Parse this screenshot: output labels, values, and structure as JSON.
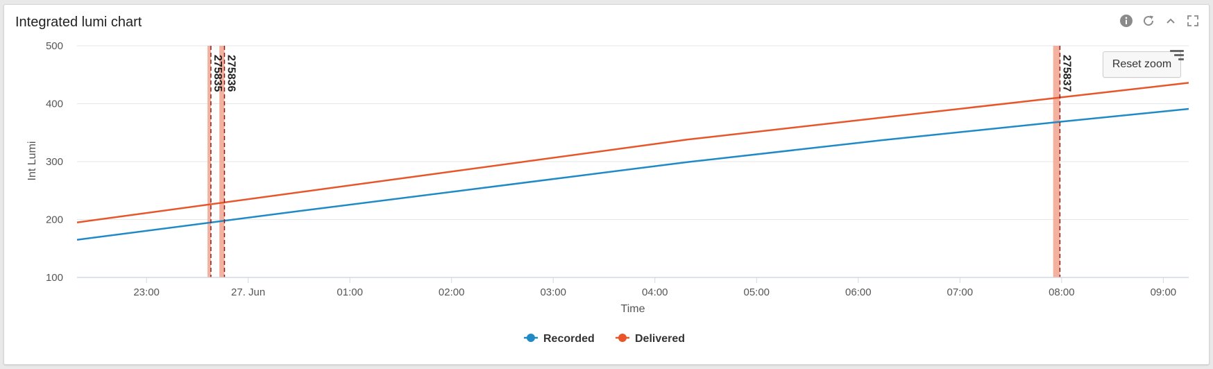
{
  "panel": {
    "title": "Integrated lumi chart",
    "tools": [
      "info-icon",
      "refresh-icon",
      "collapse-icon",
      "fullscreen-icon"
    ]
  },
  "reset_zoom_label": "Reset zoom",
  "colors": {
    "recorded": "#1f8ac5",
    "delivered": "#e8552a",
    "band": "#f0a58e",
    "plotline": "#8b1a1a",
    "grid": "#e6e6e6",
    "axis": "#cfd8e3"
  },
  "chart_data": {
    "type": "line",
    "title": "",
    "xlabel": "Time",
    "ylabel": "Int Lumi",
    "x_type": "datetime",
    "xlim": [
      "26 Jun 22:19",
      "27 Jun 09:15"
    ],
    "ylim": [
      100,
      500
    ],
    "y_ticks": [
      100,
      200,
      300,
      400,
      500
    ],
    "x_ticks": [
      {
        "t": "26 Jun 23:00",
        "label": "23:00"
      },
      {
        "t": "27 Jun 00:00",
        "label": "27. Jun"
      },
      {
        "t": "27 Jun 01:00",
        "label": "01:00"
      },
      {
        "t": "27 Jun 02:00",
        "label": "02:00"
      },
      {
        "t": "27 Jun 03:00",
        "label": "03:00"
      },
      {
        "t": "27 Jun 04:00",
        "label": "04:00"
      },
      {
        "t": "27 Jun 05:00",
        "label": "05:00"
      },
      {
        "t": "27 Jun 06:00",
        "label": "06:00"
      },
      {
        "t": "27 Jun 07:00",
        "label": "07:00"
      },
      {
        "t": "27 Jun 08:00",
        "label": "08:00"
      },
      {
        "t": "27 Jun 09:00",
        "label": "09:00"
      }
    ],
    "grid": true,
    "legend_position": "bottom-center",
    "series": [
      {
        "name": "Recorded",
        "points": [
          {
            "t": "26 Jun 22:19",
            "y": 165
          },
          {
            "t": "27 Jun 00:31",
            "y": 215
          },
          {
            "t": "27 Jun 04:19",
            "y": 299
          },
          {
            "t": "27 Jun 06:14",
            "y": 337
          },
          {
            "t": "27 Jun 08:00",
            "y": 369
          },
          {
            "t": "27 Jun 09:15",
            "y": 391
          }
        ]
      },
      {
        "name": "Delivered",
        "points": [
          {
            "t": "26 Jun 22:19",
            "y": 195
          },
          {
            "t": "27 Jun 04:19",
            "y": 338
          },
          {
            "t": "27 Jun 08:00",
            "y": 411
          },
          {
            "t": "27 Jun 09:15",
            "y": 436
          }
        ]
      }
    ],
    "runs": [
      {
        "label": "275835",
        "start": "26 Jun 23:36",
        "end": "26 Jun 23:38"
      },
      {
        "label": "275836",
        "start": "26 Jun 23:43",
        "end": "26 Jun 23:46"
      },
      {
        "label": "275837",
        "start": "27 Jun 07:55",
        "end": "27 Jun 07:59"
      }
    ]
  }
}
